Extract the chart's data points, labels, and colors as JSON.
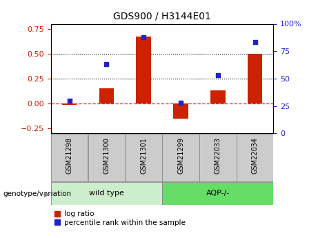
{
  "title": "GDS900 / H3144E01",
  "categories": [
    "GSM21298",
    "GSM21300",
    "GSM21301",
    "GSM21299",
    "GSM22033",
    "GSM22034"
  ],
  "log_ratios": [
    -0.012,
    0.155,
    0.675,
    -0.155,
    0.13,
    0.5
  ],
  "percentile_ranks": [
    30,
    63,
    88,
    28,
    53,
    83
  ],
  "group1_label": "wild type",
  "group2_label": "AQP-/-",
  "bar_color": "#cc2200",
  "dot_color": "#2222cc",
  "group1_bg": "#cceecc",
  "group2_bg": "#66dd66",
  "xticklabel_bg": "#cccccc",
  "ylim_left": [
    -0.3,
    0.8
  ],
  "ylim_right": [
    0,
    100
  ],
  "left_ticks": [
    -0.25,
    0.0,
    0.25,
    0.5,
    0.75
  ],
  "right_ticks": [
    0,
    25,
    50,
    75,
    100
  ],
  "hlines": [
    0.0,
    0.25,
    0.5
  ],
  "hline_colors": [
    "#cc3333",
    "#000000",
    "#000000"
  ],
  "hline_styles": [
    "dashed",
    "dotted",
    "dotted"
  ],
  "legend_items": [
    "log ratio",
    "percentile rank within the sample"
  ],
  "genotype_label": "genotype/variation"
}
